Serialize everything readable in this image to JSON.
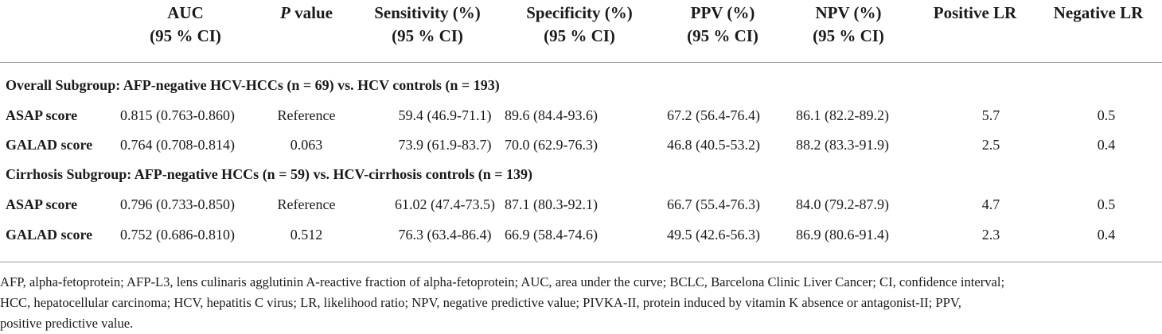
{
  "columns": {
    "auc": {
      "line1": "AUC",
      "line2": "(95 % CI)"
    },
    "pvalue": {
      "italic": "P",
      "rest": " value"
    },
    "sensitivity": {
      "line1": "Sensitivity (%)",
      "line2": "(95 % CI)"
    },
    "specificity": {
      "line1": "Specificity (%)",
      "line2": "(95 % CI)"
    },
    "ppv": {
      "line1": "PPV (%)",
      "line2": "(95 % CI)"
    },
    "npv": {
      "line1": "NPV (%)",
      "line2": "(95 % CI)"
    },
    "positive_lr": "Positive LR",
    "negative_lr": "Negative LR"
  },
  "subgroups": [
    {
      "title": "Overall Subgroup: AFP-negative HCV-HCCs (n = 69) vs. HCV controls (n = 193)",
      "rows": [
        {
          "name": "ASAP score",
          "auc": "0.815 (0.763-0.860)",
          "p": "Reference",
          "sens": "59.4 (46.9-71.1)",
          "spec": "89.6 (84.4-93.6)",
          "ppv": "67.2 (56.4-76.4)",
          "npv": "86.1 (82.2-89.2)",
          "plr": "5.7",
          "nlr": "0.5"
        },
        {
          "name": "GALAD score",
          "auc": "0.764 (0.708-0.814)",
          "p": "0.063",
          "sens": "73.9 (61.9-83.7)",
          "spec": "70.0 (62.9-76.3)",
          "ppv": "46.8 (40.5-53.2)",
          "npv": "88.2 (83.3-91.9)",
          "plr": "2.5",
          "nlr": "0.4"
        }
      ]
    },
    {
      "title": "Cirrhosis Subgroup: AFP-negative HCCs (n = 59) vs. HCV-cirrhosis controls (n = 139)",
      "rows": [
        {
          "name": "ASAP score",
          "auc": "0.796 (0.733-0.850)",
          "p": "Reference",
          "sens": "61.02 (47.4-73.5)",
          "spec": "87.1 (80.3-92.1)",
          "ppv": "66.7 (55.4-76.3)",
          "npv": "84.0 (79.2-87.9)",
          "plr": "4.7",
          "nlr": "0.5"
        },
        {
          "name": "GALAD score",
          "auc": "0.752 (0.686-0.810)",
          "p": "0.512",
          "sens": "76.3 (63.4-86.4)",
          "spec": "66.9 (58.4-74.6)",
          "ppv": "49.5 (42.6-56.3)",
          "npv": "86.9 (80.6-91.4)",
          "plr": "2.3",
          "nlr": "0.4"
        }
      ]
    }
  ],
  "footnote": {
    "line1": "AFP, alpha-fetoprotein; AFP-L3, lens culinaris agglutinin A-reactive fraction of alpha-fetoprotein; AUC, area under the curve; BCLC, Barcelona Clinic Liver Cancer; CI, confidence interval;",
    "line2": "HCC, hepatocellular carcinoma; HCV, hepatitis C virus; LR, likelihood ratio; NPV, negative predictive value; PIVKA-II, protein induced by vitamin K absence or antagonist-II; PPV,",
    "line3": "positive predictive value."
  }
}
